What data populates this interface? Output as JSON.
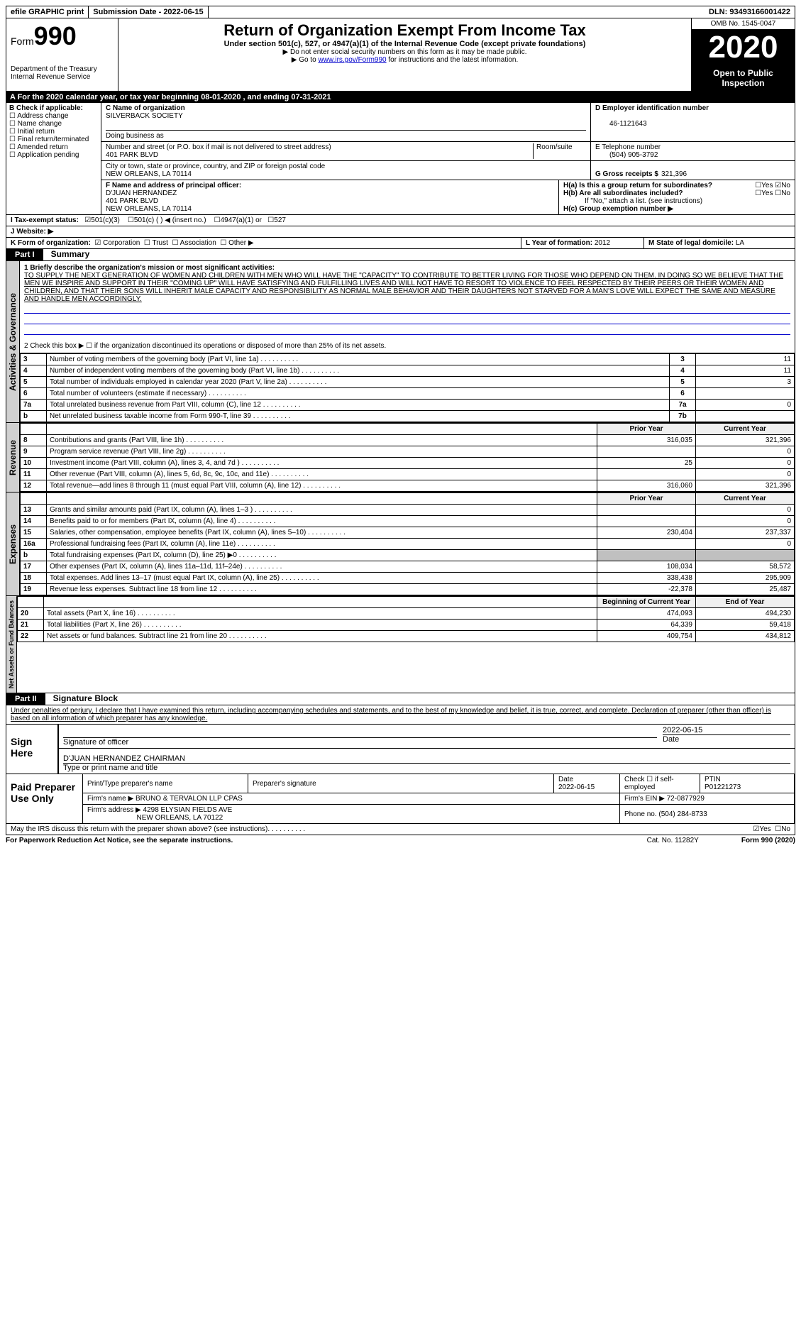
{
  "topbar": {
    "efile": "efile GRAPHIC print",
    "submission": "Submission Date - 2022-06-15",
    "dln": "DLN: 93493166001422"
  },
  "header": {
    "form_prefix": "Form",
    "form_number": "990",
    "dept": "Department of the Treasury",
    "irs": "Internal Revenue Service",
    "title": "Return of Organization Exempt From Income Tax",
    "subtitle": "Under section 501(c), 527, or 4947(a)(1) of the Internal Revenue Code (except private foundations)",
    "line1": "▶ Do not enter social security numbers on this form as it may be made public.",
    "line2_pre": "▶ Go to ",
    "line2_link": "www.irs.gov/Form990",
    "line2_post": " for instructions and the latest information.",
    "omb": "OMB No. 1545-0047",
    "year": "2020",
    "open": "Open to Public Inspection"
  },
  "a_row": "A For the 2020 calendar year, or tax year beginning 08-01-2020    , and ending 07-31-2021",
  "b": {
    "label": "B Check if applicable:",
    "items": [
      "Address change",
      "Name change",
      "Initial return",
      "Final return/terminated",
      "Amended return",
      "Application pending"
    ]
  },
  "c": {
    "name_label": "C Name of organization",
    "name": "SILVERBACK SOCIETY",
    "dba_label": "Doing business as",
    "street_label": "Number and street (or P.O. box if mail is not delivered to street address)",
    "room_label": "Room/suite",
    "street": "401 PARK BLVD",
    "city_label": "City or town, state or province, country, and ZIP or foreign postal code",
    "city": "NEW ORLEANS, LA  70114"
  },
  "d": {
    "label": "D Employer identification number",
    "value": "46-1121643"
  },
  "e": {
    "label": "E Telephone number",
    "value": "(504) 905-3792"
  },
  "g": {
    "label": "G Gross receipts $",
    "value": "321,396"
  },
  "f": {
    "label": "F  Name and address of principal officer:",
    "name": "D'JUAN HERNANDEZ",
    "street": "401 PARK BLVD",
    "city": "NEW ORLEANS, LA  70114"
  },
  "h": {
    "ha": "H(a)  Is this a group return for subordinates?",
    "hb": "H(b)  Are all subordinates included?",
    "hb_note": "If \"No,\" attach a list. (see instructions)",
    "hc": "H(c)  Group exemption number ▶",
    "yes": "Yes",
    "no": "No"
  },
  "i": {
    "label": "I   Tax-exempt status:",
    "opt1": "501(c)(3)",
    "opt2": "501(c) (  ) ◀ (insert no.)",
    "opt3": "4947(a)(1) or",
    "opt4": "527"
  },
  "j": "J   Website: ▶",
  "k": {
    "label": "K Form of organization:",
    "corp": "Corporation",
    "trust": "Trust",
    "assoc": "Association",
    "other": "Other ▶"
  },
  "l": {
    "label": "L Year of formation:",
    "value": "2012"
  },
  "m": {
    "label": "M State of legal domicile:",
    "value": "LA"
  },
  "part1": {
    "header": "Part I",
    "title": "Summary",
    "line1_label": "1   Briefly describe the organization's mission or most significant activities:",
    "mission": "TO SUPPLY THE NEXT GENERATION OF WOMEN AND CHILDREN WITH MEN WHO WILL HAVE THE \"CAPACITY\" TO CONTRIBUTE TO BETTER LIVING FOR THOSE WHO DEPEND ON THEM. IN DOING SO WE BELIEVE THAT THE MEN WE INSPIRE AND SUPPORT IN THEIR \"COMING UP\" WILL HAVE SATISFYING AND FULFILLING LIVES AND WILL NOT HAVE TO RESORT TO VIOLENCE TO FEEL RESPECTED BY THEIR PEERS OR THEIR WOMEN AND CHILDREN, AND THAT THEIR SONS WILL INHERIT MALE CAPACITY AND RESPONSIBILITY AS NORMAL MALE BEHAVIOR AND THEIR DAUGHTERS NOT STARVED FOR A MAN'S LOVE WILL EXPECT THE SAME AND MEASURE AND HANDLE MEN ACCORDINGLY.",
    "line2": "2   Check this box ▶ ☐  if the organization discontinued its operations or disposed of more than 25% of its net assets."
  },
  "gov_rows": [
    {
      "n": "3",
      "label": "Number of voting members of the governing body (Part VI, line 1a)",
      "ln": "3",
      "v": "11"
    },
    {
      "n": "4",
      "label": "Number of independent voting members of the governing body (Part VI, line 1b)",
      "ln": "4",
      "v": "11"
    },
    {
      "n": "5",
      "label": "Total number of individuals employed in calendar year 2020 (Part V, line 2a)",
      "ln": "5",
      "v": "3"
    },
    {
      "n": "6",
      "label": "Total number of volunteers (estimate if necessary)",
      "ln": "6",
      "v": ""
    },
    {
      "n": "7a",
      "label": "Total unrelated business revenue from Part VIII, column (C), line 12",
      "ln": "7a",
      "v": "0"
    },
    {
      "n": "b",
      "label": "Net unrelated business taxable income from Form 990-T, line 39",
      "ln": "7b",
      "v": ""
    }
  ],
  "fin_headers": {
    "prior": "Prior Year",
    "current": "Current Year",
    "begin": "Beginning of Current Year",
    "end": "End of Year"
  },
  "rev_rows": [
    {
      "n": "8",
      "label": "Contributions and grants (Part VIII, line 1h)",
      "p": "316,035",
      "c": "321,396"
    },
    {
      "n": "9",
      "label": "Program service revenue (Part VIII, line 2g)",
      "p": "",
      "c": "0"
    },
    {
      "n": "10",
      "label": "Investment income (Part VIII, column (A), lines 3, 4, and 7d )",
      "p": "25",
      "c": "0"
    },
    {
      "n": "11",
      "label": "Other revenue (Part VIII, column (A), lines 5, 6d, 8c, 9c, 10c, and 11e)",
      "p": "",
      "c": "0"
    },
    {
      "n": "12",
      "label": "Total revenue—add lines 8 through 11 (must equal Part VIII, column (A), line 12)",
      "p": "316,060",
      "c": "321,396"
    }
  ],
  "exp_rows": [
    {
      "n": "13",
      "label": "Grants and similar amounts paid (Part IX, column (A), lines 1–3 )",
      "p": "",
      "c": "0"
    },
    {
      "n": "14",
      "label": "Benefits paid to or for members (Part IX, column (A), line 4)",
      "p": "",
      "c": "0"
    },
    {
      "n": "15",
      "label": "Salaries, other compensation, employee benefits (Part IX, column (A), lines 5–10)",
      "p": "230,404",
      "c": "237,337"
    },
    {
      "n": "16a",
      "label": "Professional fundraising fees (Part IX, column (A), line 11e)",
      "p": "",
      "c": "0"
    },
    {
      "n": "b",
      "label": "Total fundraising expenses (Part IX, column (D), line 25) ▶0",
      "p": "SHADE",
      "c": "SHADE"
    },
    {
      "n": "17",
      "label": "Other expenses (Part IX, column (A), lines 11a–11d, 11f–24e)",
      "p": "108,034",
      "c": "58,572"
    },
    {
      "n": "18",
      "label": "Total expenses. Add lines 13–17 (must equal Part IX, column (A), line 25)",
      "p": "338,438",
      "c": "295,909"
    },
    {
      "n": "19",
      "label": "Revenue less expenses. Subtract line 18 from line 12",
      "p": "-22,378",
      "c": "25,487"
    }
  ],
  "net_rows": [
    {
      "n": "20",
      "label": "Total assets (Part X, line 16)",
      "p": "474,093",
      "c": "494,230"
    },
    {
      "n": "21",
      "label": "Total liabilities (Part X, line 26)",
      "p": "64,339",
      "c": "59,418"
    },
    {
      "n": "22",
      "label": "Net assets or fund balances. Subtract line 21 from line 20",
      "p": "409,754",
      "c": "434,812"
    }
  ],
  "vtabs": {
    "gov": "Activities & Governance",
    "rev": "Revenue",
    "exp": "Expenses",
    "net": "Net Assets or Fund Balances"
  },
  "part2": {
    "header": "Part II",
    "title": "Signature Block",
    "decl": "Under penalties of perjury, I declare that I have examined this return, including accompanying schedules and statements, and to the best of my knowledge and belief, it is true, correct, and complete. Declaration of preparer (other than officer) is based on all information of which preparer has any knowledge."
  },
  "sign": {
    "here": "Sign Here",
    "sig_label": "Signature of officer",
    "date_label": "Date",
    "date": "2022-06-15",
    "name": "D'JUAN HERNANDEZ  CHAIRMAN",
    "name_label": "Type or print name and title"
  },
  "paid": {
    "label": "Paid Preparer Use Only",
    "print_label": "Print/Type preparer's name",
    "sig_label": "Preparer's signature",
    "date_label": "Date",
    "date": "2022-06-15",
    "check_label": "Check ☐ if self-employed",
    "ptin_label": "PTIN",
    "ptin": "P01221273",
    "firm_name_label": "Firm's name    ▶",
    "firm_name": "BRUNO & TERVALON LLP CPAS",
    "firm_ein_label": "Firm's EIN ▶",
    "firm_ein": "72-0877929",
    "firm_addr_label": "Firm's address ▶",
    "firm_addr1": "4298 ELYSIAN FIELDS AVE",
    "firm_addr2": "NEW ORLEANS, LA  70122",
    "phone_label": "Phone no.",
    "phone": "(504) 284-8733"
  },
  "discuss": {
    "q": "May the IRS discuss this return with the preparer shown above? (see instructions)",
    "yes": "Yes",
    "no": "No"
  },
  "footer": {
    "pra": "For Paperwork Reduction Act Notice, see the separate instructions.",
    "cat": "Cat. No. 11282Y",
    "form": "Form 990 (2020)"
  }
}
